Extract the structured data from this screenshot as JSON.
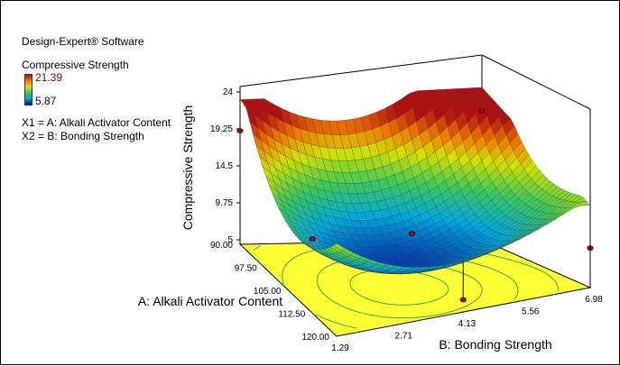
{
  "software": "Design-Expert® Software",
  "response_title": "Compressive Strength",
  "legend": {
    "max": "21.39",
    "min": "5.87"
  },
  "factors": [
    "X1 = A: Alkali Activator Content",
    "X2 = B: Bonding Strength"
  ],
  "colors": {
    "high": "#b01010",
    "mid": "#d8e000",
    "low": "#0010a0",
    "floor": "#ffff33",
    "contour": "#33aa55",
    "point": "#c00000"
  },
  "chart_data": {
    "type": "surface",
    "zlabel": "Compressive Strength",
    "xlabel": "A: Alkali Activator Content",
    "ylabel": "B: Bonding Strength",
    "z_ticks": [
      "24",
      "19.25",
      "14.5",
      "9.75",
      "5"
    ],
    "a_ticks": [
      "90.00",
      "97.50",
      "105.00",
      "112.50",
      "120.00"
    ],
    "b_ticks": [
      "1.29",
      "2.71",
      "4.13",
      "5.56",
      "6.98"
    ],
    "zlim": [
      5,
      24
    ],
    "a_range": [
      90,
      120
    ],
    "b_range": [
      1.29,
      6.98
    ],
    "surface_corners": [
      {
        "a": 90,
        "b": 1.29,
        "z": 23
      },
      {
        "a": 90,
        "b": 6.98,
        "z": 24
      },
      {
        "a": 120,
        "b": 1.29,
        "z": 20
      },
      {
        "a": 120,
        "b": 6.98,
        "z": 15
      }
    ],
    "surface_minimum": {
      "a": 108,
      "b": 3.6,
      "z": 6.5
    },
    "design_points": [
      {
        "a": 90,
        "b": 1.29,
        "z": 19
      },
      {
        "a": 90,
        "b": 6.98,
        "z": 21
      },
      {
        "a": 112.5,
        "b": 1.29,
        "z": 14
      },
      {
        "a": 105,
        "b": 4.13,
        "z": 10
      },
      {
        "a": 120,
        "b": 6.98,
        "z": 9.5
      },
      {
        "a": 120,
        "b": 4.13,
        "z": 6
      }
    ]
  }
}
